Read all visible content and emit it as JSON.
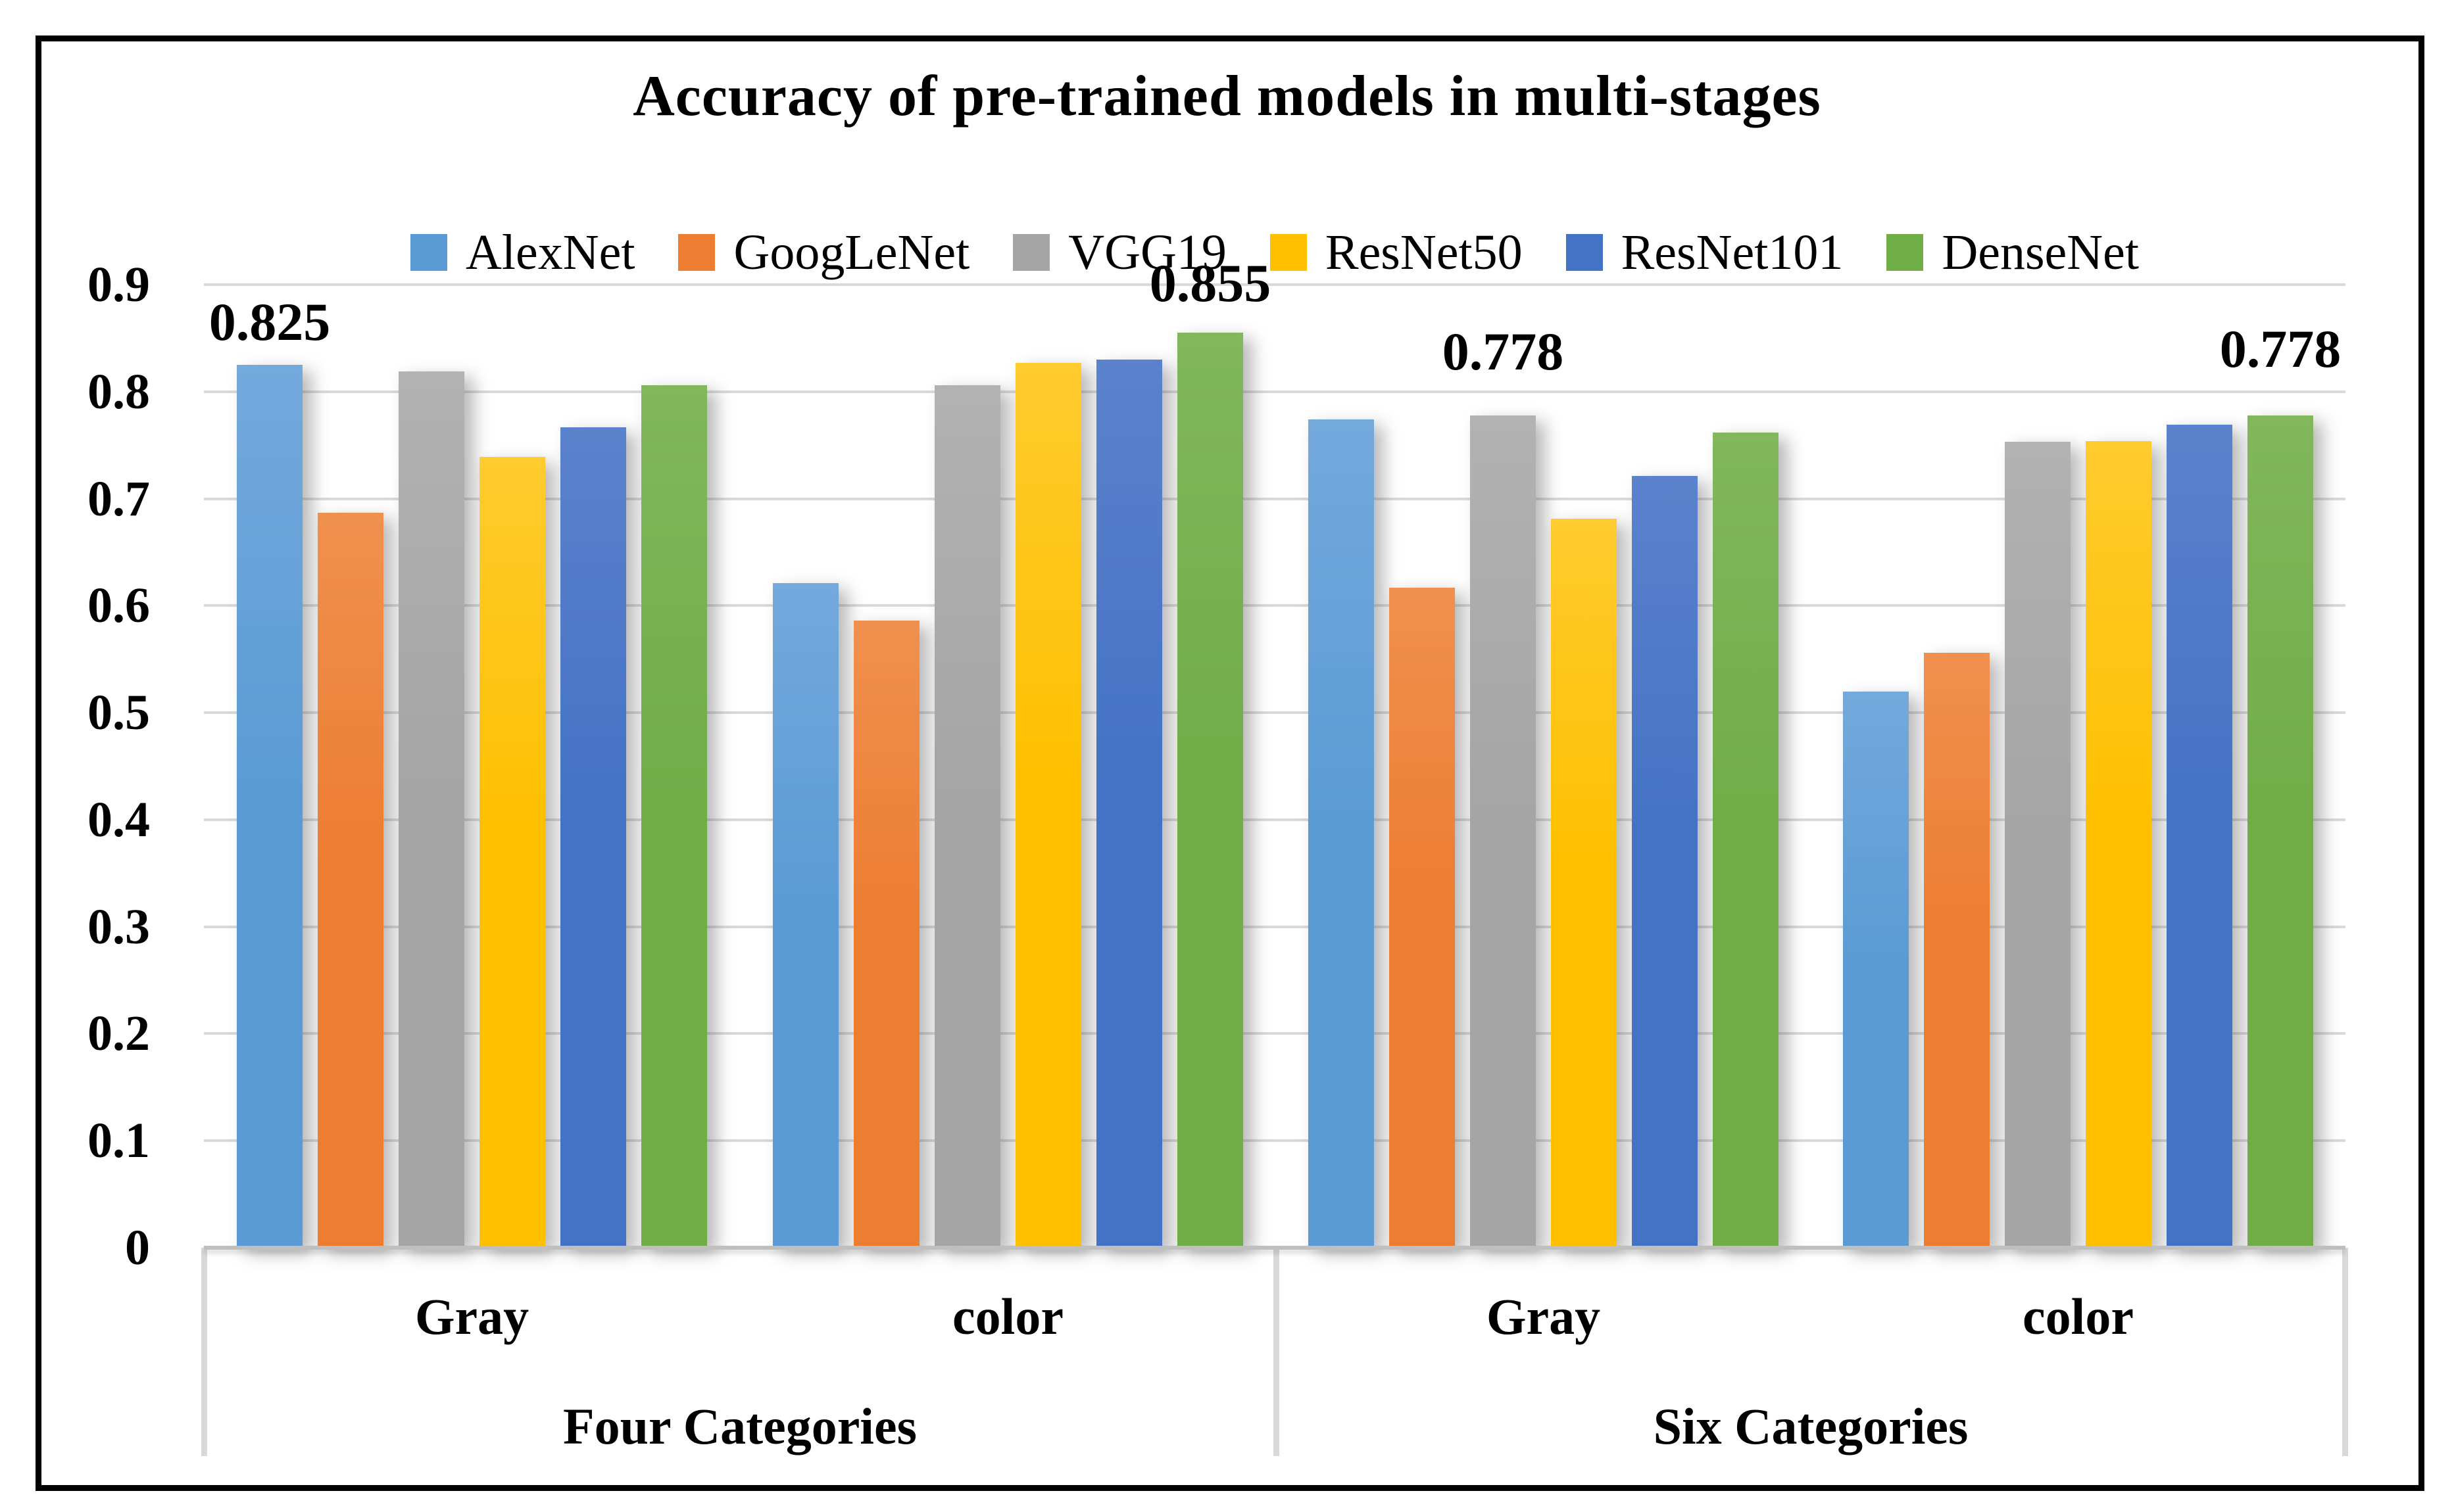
{
  "figure": {
    "title": "Accuracy of pre-trained models in multi-stages"
  },
  "legend": {
    "items": [
      {
        "label": "AlexNet",
        "color": "#5B9BD5",
        "color_light": "#74A9DC"
      },
      {
        "label": "GoogLeNet",
        "color": "#ED7D31",
        "color_light": "#F0904E"
      },
      {
        "label": "VGG19",
        "color": "#A5A5A5",
        "color_light": "#B2B2B2"
      },
      {
        "label": "ResNet50",
        "color": "#FFC000",
        "color_light": "#FFCB2E"
      },
      {
        "label": "ResNet101",
        "color": "#4472C4",
        "color_light": "#5A82CD"
      },
      {
        "label": "DenseNet",
        "color": "#70AD47",
        "color_light": "#82B75C"
      }
    ],
    "position": "top-center"
  },
  "y_axis": {
    "tick_labels": [
      "0",
      "0.1",
      "0.2",
      "0.3",
      "0.4",
      "0.5",
      "0.6",
      "0.7",
      "0.8",
      "0.9"
    ],
    "tick_values": [
      0,
      0.1,
      0.2,
      0.3,
      0.4,
      0.5,
      0.6,
      0.7,
      0.8,
      0.9
    ]
  },
  "chart_data": {
    "type": "bar",
    "title": "Accuracy of pre-trained models in multi-stages",
    "xlabel": "",
    "ylabel": "",
    "ylim": [
      0,
      0.9
    ],
    "grid": true,
    "legend_position": "top",
    "series_names": [
      "AlexNet",
      "GoogLeNet",
      "VGG19",
      "ResNet50",
      "ResNet101",
      "DenseNet"
    ],
    "series_colors": [
      "#5B9BD5",
      "#ED7D31",
      "#A5A5A5",
      "#FFC000",
      "#4472C4",
      "#70AD47"
    ],
    "category_level_2": [
      "Four Categories",
      "Six Categories"
    ],
    "groups": [
      {
        "category": "Four Categories",
        "subcategory": "Gray",
        "values": [
          0.825,
          0.687,
          0.819,
          0.739,
          0.767,
          0.806
        ]
      },
      {
        "category": "Four Categories",
        "subcategory": "color",
        "values": [
          0.621,
          0.586,
          0.806,
          0.827,
          0.83,
          0.855
        ]
      },
      {
        "category": "Six Categories",
        "subcategory": "Gray",
        "values": [
          0.774,
          0.617,
          0.778,
          0.681,
          0.721,
          0.762
        ]
      },
      {
        "category": "Six Categories",
        "subcategory": "color",
        "values": [
          0.52,
          0.556,
          0.753,
          0.754,
          0.769,
          0.778
        ]
      }
    ],
    "data_labels": [
      {
        "group_index": 0,
        "series_index": 0,
        "text": "0.825"
      },
      {
        "group_index": 1,
        "series_index": 5,
        "text": "0.855"
      },
      {
        "group_index": 2,
        "series_index": 2,
        "text": "0.778"
      },
      {
        "group_index": 3,
        "series_index": 5,
        "text": "0.778"
      }
    ]
  }
}
